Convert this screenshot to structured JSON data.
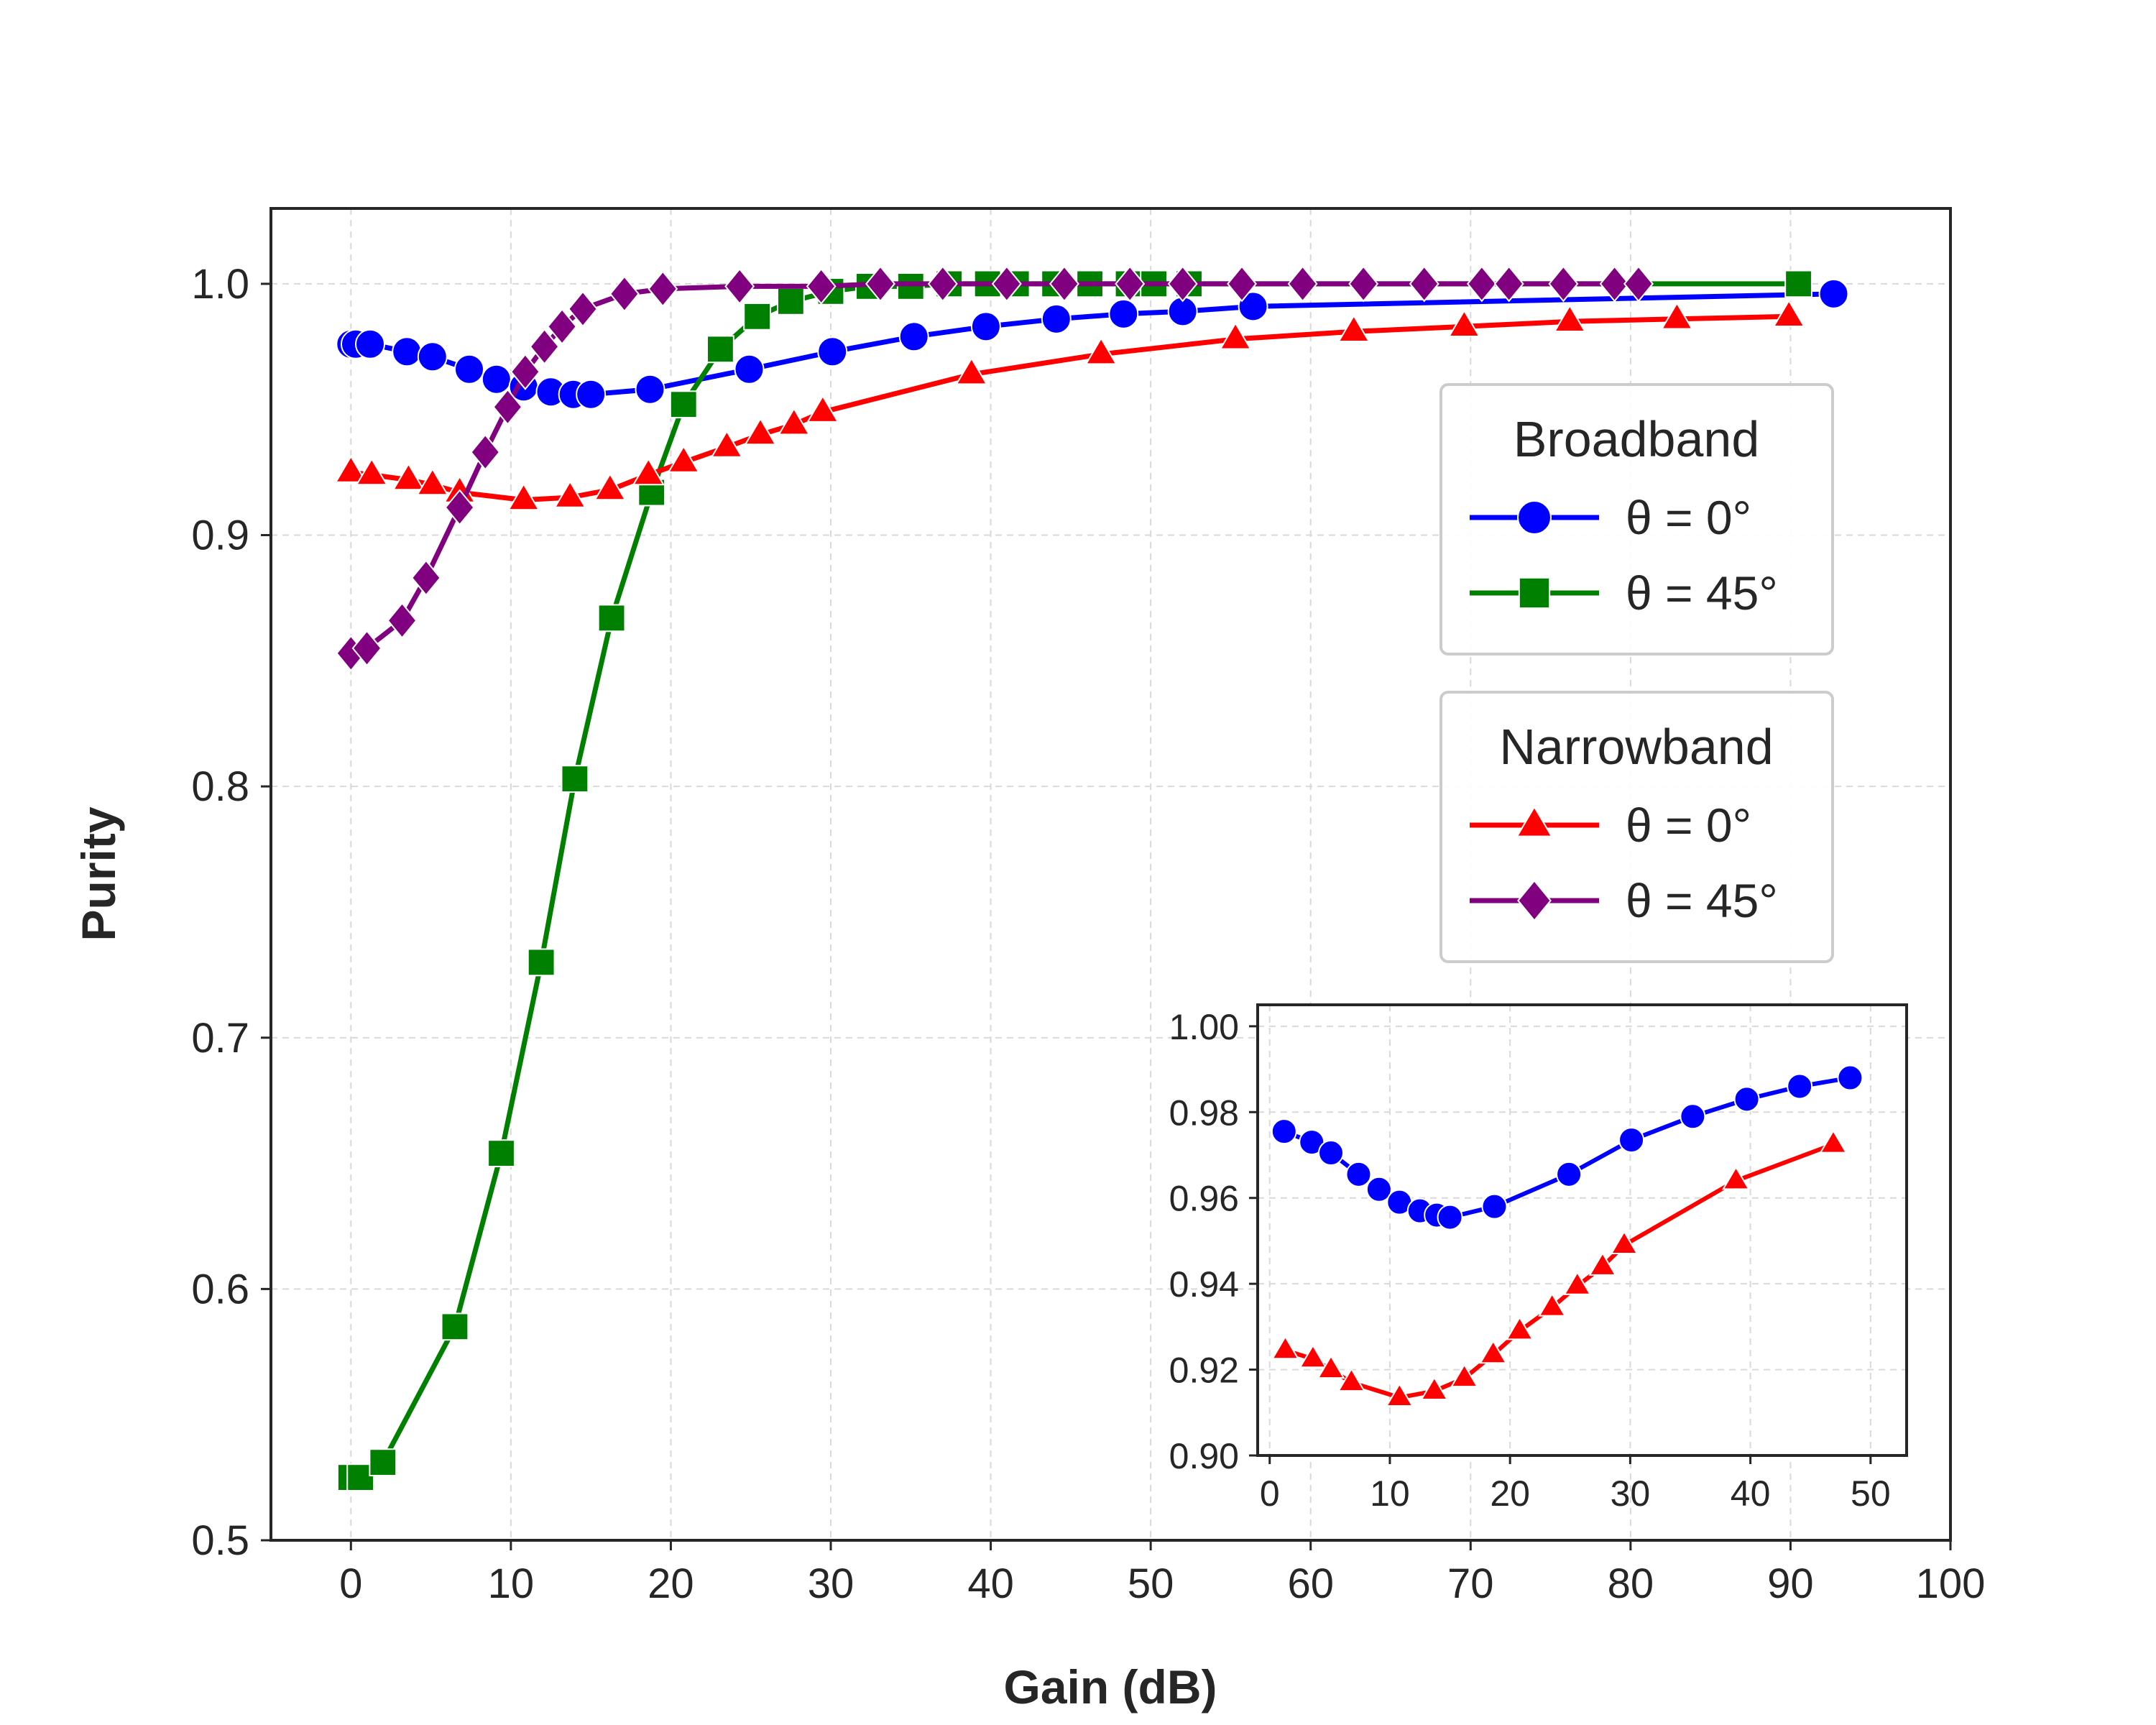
{
  "chart_data": [
    {
      "type": "line",
      "panel": "main",
      "xlabel": "Gain (dB)",
      "ylabel": "Purity",
      "xlim": [
        -5,
        100
      ],
      "ylim": [
        0.5,
        1.03
      ],
      "xticks": [
        "0",
        "10",
        "20",
        "30",
        "40",
        "50",
        "60",
        "70",
        "80",
        "90",
        "100"
      ],
      "yticks": [
        "0.5",
        "0.6",
        "0.7",
        "0.8",
        "0.9",
        "1.0"
      ],
      "grid": true,
      "legend_position": "right, upper-middle",
      "legend_groups": [
        {
          "title": "Broadband",
          "entries": [
            "bb0",
            "bb45"
          ]
        },
        {
          "title": "Narrowband",
          "entries": [
            "nb0",
            "nb45"
          ]
        }
      ],
      "series": [
        {
          "id": "bb0",
          "name": "θ = 0°",
          "color": "#0000ff",
          "marker": "circle",
          "x": [
            0,
            0.3,
            1.2,
            3.5,
            5.1,
            7.4,
            9.1,
            10.8,
            12.5,
            13.9,
            15.0,
            18.7,
            24.9,
            30.1,
            35.2,
            39.7,
            44.1,
            48.3,
            52.0,
            56.4,
            92.7
          ],
          "y": [
            0.976,
            0.976,
            0.976,
            0.973,
            0.971,
            0.966,
            0.962,
            0.959,
            0.957,
            0.956,
            0.956,
            0.958,
            0.966,
            0.973,
            0.979,
            0.983,
            0.986,
            0.988,
            0.989,
            0.991,
            0.996
          ]
        },
        {
          "id": "bb45",
          "name": "θ = 45°",
          "color": "#008000",
          "marker": "square",
          "x": [
            0,
            0.6,
            2.0,
            6.5,
            9.4,
            11.9,
            14.0,
            16.3,
            18.8,
            20.8,
            23.1,
            25.4,
            27.5,
            30.0,
            32.4,
            35.0,
            37.4,
            39.8,
            41.6,
            44.0,
            46.2,
            48.6,
            50.2,
            52.4,
            90.5
          ],
          "y": [
            0.525,
            0.525,
            0.531,
            0.585,
            0.654,
            0.73,
            0.803,
            0.867,
            0.917,
            0.952,
            0.974,
            0.987,
            0.993,
            0.997,
            0.999,
            0.999,
            1.0,
            1.0,
            1.0,
            1.0,
            1.0,
            1.0,
            1.0,
            1.0,
            1.0
          ]
        },
        {
          "id": "nb0",
          "name": "θ = 0°",
          "color": "#ff0000",
          "marker": "triangle",
          "x": [
            0,
            1.3,
            3.6,
            5.1,
            6.8,
            10.8,
            13.7,
            16.2,
            18.6,
            20.8,
            23.5,
            25.6,
            27.7,
            29.5,
            38.8,
            46.9,
            55.3,
            62.7,
            69.6,
            76.2,
            82.9,
            89.9
          ],
          "y": [
            0.925,
            0.924,
            0.922,
            0.92,
            0.917,
            0.914,
            0.915,
            0.918,
            0.924,
            0.929,
            0.935,
            0.94,
            0.944,
            0.949,
            0.964,
            0.972,
            0.978,
            0.981,
            0.983,
            0.985,
            0.986,
            0.987
          ]
        },
        {
          "id": "nb45",
          "name": "θ = 45°",
          "color": "#800080",
          "marker": "diamond",
          "x": [
            0,
            1.0,
            3.2,
            4.7,
            6.8,
            8.4,
            9.8,
            10.9,
            12.1,
            13.2,
            14.5,
            17.1,
            19.5,
            24.3,
            29.4,
            33.1,
            37.0,
            41.0,
            44.6,
            48.7,
            52.0,
            55.7,
            59.5,
            63.3,
            67.1,
            70.7,
            72.4,
            75.8,
            79.0,
            80.5
          ],
          "y": [
            0.853,
            0.855,
            0.866,
            0.883,
            0.911,
            0.933,
            0.951,
            0.965,
            0.975,
            0.983,
            0.99,
            0.996,
            0.998,
            0.999,
            0.999,
            1.0,
            1.0,
            1.0,
            1.0,
            1.0,
            1.0,
            1.0,
            1.0,
            1.0,
            1.0,
            1.0,
            1.0,
            1.0,
            1.0,
            1.0
          ]
        }
      ]
    },
    {
      "type": "line",
      "panel": "inset",
      "position": "lower-right",
      "xlim": [
        -1,
        53
      ],
      "ylim": [
        0.9,
        1.005
      ],
      "xticks": [
        "0",
        "10",
        "20",
        "30",
        "40",
        "50"
      ],
      "yticks": [
        "0.90",
        "0.92",
        "0.94",
        "0.96",
        "0.98",
        "1.00"
      ],
      "grid": true,
      "series": [
        {
          "id": "bb0",
          "color": "#0000ff",
          "marker": "circle",
          "x": [
            1.2,
            3.5,
            5.1,
            7.4,
            9.1,
            10.8,
            12.5,
            13.9,
            15.0,
            18.7,
            24.9,
            30.1,
            35.2,
            39.7,
            44.1,
            48.3
          ],
          "y": [
            0.9755,
            0.973,
            0.9705,
            0.9655,
            0.962,
            0.959,
            0.957,
            0.956,
            0.9555,
            0.958,
            0.9655,
            0.9735,
            0.979,
            0.983,
            0.986,
            0.988
          ]
        },
        {
          "id": "nb0",
          "color": "#ff0000",
          "marker": "triangle",
          "x": [
            1.3,
            3.6,
            5.1,
            6.8,
            10.8,
            13.7,
            16.2,
            18.6,
            20.8,
            23.5,
            25.6,
            27.7,
            29.5,
            38.8,
            46.9
          ],
          "y": [
            0.9245,
            0.9225,
            0.92,
            0.917,
            0.9135,
            0.915,
            0.918,
            0.9235,
            0.929,
            0.9345,
            0.9395,
            0.944,
            0.949,
            0.964,
            0.9725
          ]
        }
      ]
    }
  ]
}
